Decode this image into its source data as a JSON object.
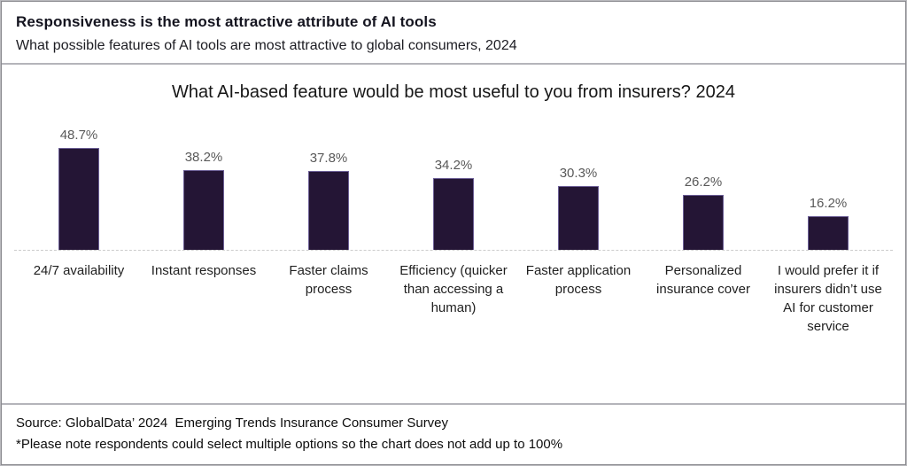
{
  "header": {
    "title": "Responsiveness is the most attractive attribute of AI tools",
    "subtitle": "What possible features of AI tools are most attractive to global consumers, 2024"
  },
  "chart_data": {
    "type": "bar",
    "title": "What AI-based feature would be most useful to you from insurers? 2024",
    "categories": [
      "24/7 availability",
      "Instant responses",
      "Faster claims process",
      "Efficiency (quicker than accessing a human)",
      "Faster application process",
      "Personalized insurance cover",
      "I would prefer it if insurers didn’t use AI for customer service"
    ],
    "values": [
      48.7,
      38.2,
      37.8,
      34.2,
      30.3,
      26.2,
      16.2
    ],
    "value_labels": [
      "48.7%",
      "38.2%",
      "37.8%",
      "34.2%",
      "30.3%",
      "26.2%",
      "16.2%"
    ],
    "unit": "%",
    "bar_color": "#241535",
    "value_label_color": "#595959",
    "xlabel": "",
    "ylabel": "",
    "ylim": [
      0,
      55
    ],
    "grid": false,
    "legend": "none",
    "data_labels_position": "above bars",
    "axis_line_style": "dashed light gray baseline"
  },
  "footer": {
    "source_line": "Source: GlobalData’ 2024  Emerging Trends Insurance Consumer Survey",
    "note_line": "*Please note respondents could select multiple options so the chart does not add up to 100%"
  }
}
